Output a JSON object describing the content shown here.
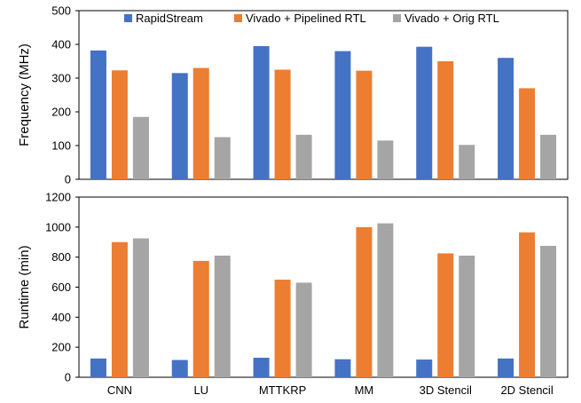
{
  "chart_data": {
    "type": "bar",
    "categories": [
      "CNN",
      "LU",
      "MTTKRP",
      "MM",
      "3D Stencil",
      "2D Stencil"
    ],
    "legend": {
      "placement": "top",
      "entries": [
        "RapidStream",
        "Vivado + Pipelined RTL",
        "Vivado + Orig RTL"
      ]
    },
    "colors": {
      "RapidStream": "#4472c4",
      "Vivado + Pipelined RTL": "#ed7d31",
      "Vivado + Orig RTL": "#a5a5a5"
    },
    "grid": false,
    "panels": [
      {
        "ylabel": "Frequency (MHz)",
        "ylim": [
          0,
          500
        ],
        "yticks": [
          0,
          100,
          200,
          300,
          400,
          500
        ],
        "series": [
          {
            "name": "RapidStream",
            "values": [
              382,
              315,
              395,
              380,
              393,
              360
            ]
          },
          {
            "name": "Vivado + Pipelined RTL",
            "values": [
              323,
              330,
              325,
              322,
              350,
              270
            ]
          },
          {
            "name": "Vivado + Orig RTL",
            "values": [
              185,
              125,
              132,
              115,
              102,
              132
            ]
          }
        ]
      },
      {
        "ylabel": "Runtime (min)",
        "ylim": [
          0,
          1200
        ],
        "yticks": [
          0,
          200,
          400,
          600,
          800,
          1000,
          1200
        ],
        "series": [
          {
            "name": "RapidStream",
            "values": [
              125,
              115,
              130,
              120,
              118,
              125
            ]
          },
          {
            "name": "Vivado + Pipelined RTL",
            "values": [
              900,
              775,
              650,
              1000,
              825,
              965
            ]
          },
          {
            "name": "Vivado + Orig RTL",
            "values": [
              925,
              810,
              630,
              1025,
              810,
              875
            ]
          }
        ]
      }
    ]
  }
}
